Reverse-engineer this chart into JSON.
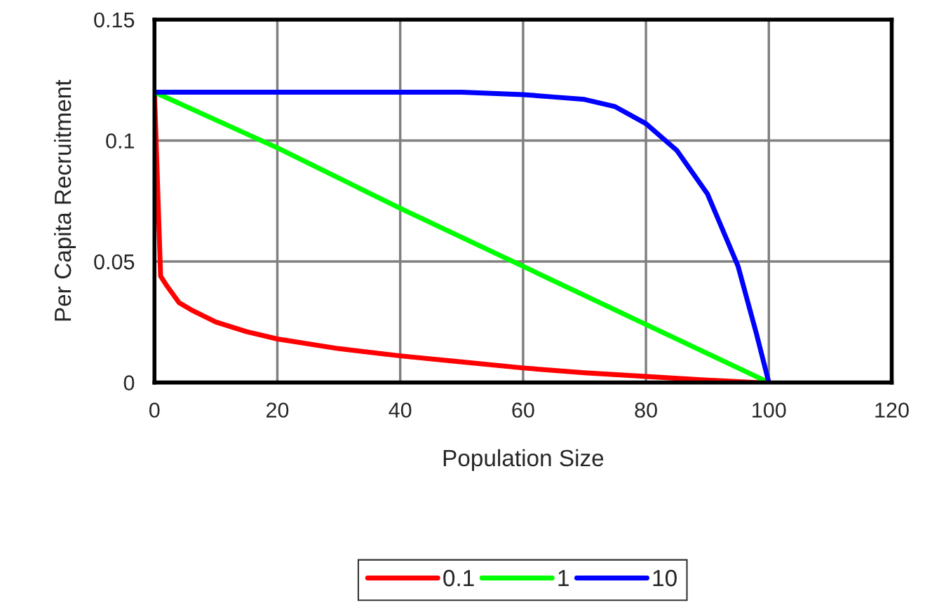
{
  "chart_data": {
    "type": "line",
    "xlabel": "Population Size",
    "ylabel": "Per Capita Recruitment",
    "xlim": [
      0,
      120
    ],
    "xticks": [
      0,
      20,
      40,
      60,
      80,
      100,
      120
    ],
    "ylim": [
      0,
      0.15
    ],
    "yticks": [
      0,
      0.05,
      {
        "value": 0.1,
        "label": "0.1"
      },
      0.15
    ],
    "grid": true,
    "legend": "bottom",
    "marker": "none",
    "line_style": "solid",
    "series": [
      {
        "name": "0.1",
        "color": "#ff0000",
        "x": [
          0,
          1,
          2,
          4,
          6,
          10,
          15,
          20,
          30,
          40,
          50,
          60,
          70,
          80,
          90,
          98,
          100
        ],
        "values": [
          0.12,
          0.044,
          0.04,
          0.033,
          0.03,
          0.025,
          0.021,
          0.018,
          0.014,
          0.011,
          0.0085,
          0.006,
          0.004,
          0.0025,
          0.001,
          0.0,
          0.0
        ]
      },
      {
        "name": "1",
        "color": "#00ff00",
        "x": [
          0,
          20,
          40,
          60,
          80,
          100
        ],
        "values": [
          0.12,
          0.097,
          0.072,
          0.048,
          0.024,
          0.0
        ]
      },
      {
        "name": "10",
        "color": "#0000ff",
        "x": [
          0,
          50,
          60,
          65,
          70,
          75,
          80,
          85,
          90,
          95,
          98,
          100
        ],
        "values": [
          0.12,
          0.12,
          0.119,
          0.118,
          0.117,
          0.114,
          0.107,
          0.096,
          0.078,
          0.048,
          0.02,
          0.0
        ]
      }
    ]
  }
}
